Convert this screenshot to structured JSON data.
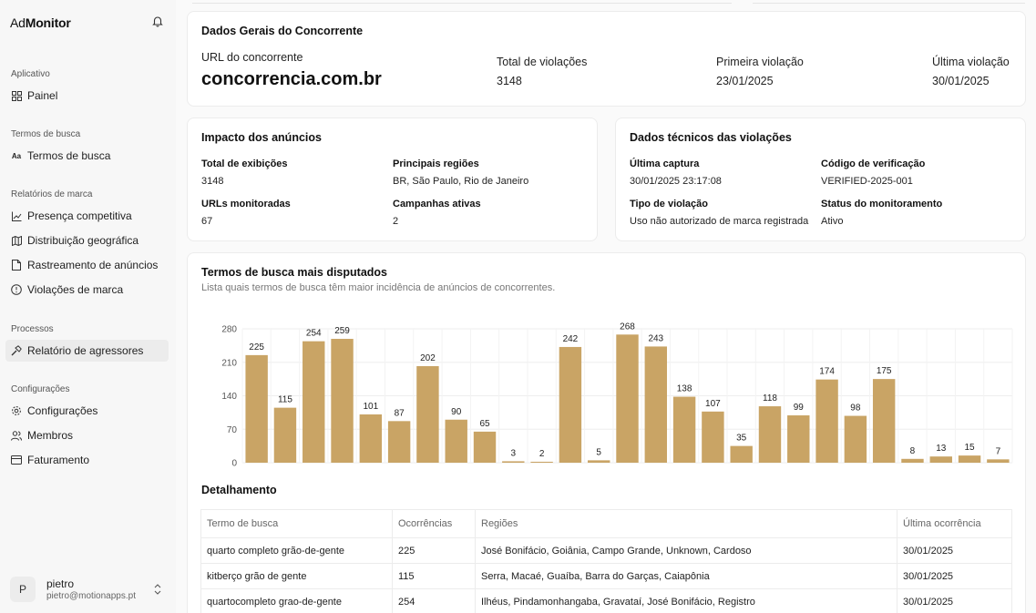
{
  "brand": {
    "ad": "Ad",
    "monitor": "Monitor"
  },
  "sidebar": {
    "sections": [
      {
        "title": "Aplicativo",
        "items": [
          {
            "label": "Painel",
            "icon": "grid-icon"
          }
        ]
      },
      {
        "title": "Termos de busca",
        "items": [
          {
            "label": "Termos de busca",
            "icon": "text-icon"
          }
        ]
      },
      {
        "title": "Relatórios de marca",
        "items": [
          {
            "label": "Presença competitiva",
            "icon": "chart-line-icon"
          },
          {
            "label": "Distribuição geográfica",
            "icon": "map-icon"
          },
          {
            "label": "Rastreamento de anúncios",
            "icon": "document-icon"
          },
          {
            "label": "Violações de marca",
            "icon": "alert-circle-icon"
          }
        ]
      },
      {
        "title": "Processos",
        "items": [
          {
            "label": "Relatório de agressores",
            "icon": "hammer-icon"
          }
        ]
      },
      {
        "title": "Configurações",
        "items": [
          {
            "label": "Configurações",
            "icon": "gear-icon"
          },
          {
            "label": "Membros",
            "icon": "users-icon"
          },
          {
            "label": "Faturamento",
            "icon": "credit-card-icon"
          }
        ]
      }
    ],
    "user": {
      "initial": "P",
      "name": "pietro",
      "email": "pietro@motionapps.pt"
    }
  },
  "general": {
    "title": "Dados Gerais do Concorrente",
    "url_label": "URL do concorrente",
    "url_value": "concorrencia.com.br",
    "total_label": "Total de violações",
    "total_value": "3148",
    "first_label": "Primeira violação",
    "first_value": "23/01/2025",
    "last_label": "Última violação",
    "last_value": "30/01/2025"
  },
  "impact": {
    "title": "Impacto dos anúncios",
    "exib_label": "Total de exibições",
    "exib_value": "3148",
    "regions_label": "Principais regiões",
    "regions_value": "BR, São Paulo, Rio de Janeiro",
    "urls_label": "URLs monitoradas",
    "urls_value": "67",
    "campaigns_label": "Campanhas ativas",
    "campaigns_value": "2"
  },
  "technical": {
    "title": "Dados técnicos das violações",
    "capture_label": "Última captura",
    "capture_value": "30/01/2025 23:17:08",
    "code_label": "Código de verificação",
    "code_value": "VERIFIED-2025-001",
    "type_label": "Tipo de violação",
    "type_value": "Uso não autorizado de marca registrada",
    "status_label": "Status do monitoramento",
    "status_value": "Ativo"
  },
  "terms": {
    "title": "Termos de busca mais disputados",
    "subtitle": "Lista quais termos de busca têm maior incidência de anúncios de concorrentes."
  },
  "chart_data": {
    "type": "bar",
    "title": "Termos de busca mais disputados",
    "values": [
      225,
      115,
      254,
      259,
      101,
      87,
      202,
      90,
      65,
      3,
      2,
      242,
      5,
      268,
      243,
      138,
      107,
      35,
      118,
      99,
      174,
      98,
      175,
      8,
      13,
      15,
      7
    ],
    "yticks": [
      0,
      70,
      140,
      210,
      280
    ],
    "ylim": [
      0,
      280
    ],
    "color": "#c9a465",
    "grid": true
  },
  "detail": {
    "title": "Detalhamento",
    "columns": [
      "Termo de busca",
      "Ocorrências",
      "Regiões",
      "Última ocorrência"
    ],
    "rows": [
      [
        "quarto completo grão-de-gente",
        "225",
        "José Bonifácio, Goiânia, Campo Grande, Unknown, Cardoso",
        "30/01/2025"
      ],
      [
        "kitberço grão de gente",
        "115",
        "Serra, Macaé, Guaíba, Barra do Garças, Caiapônia",
        "30/01/2025"
      ],
      [
        "quartocompleto grao-de-gente",
        "254",
        "Ilhéus, Pindamonhangaba, Gravataí, José Bonifácio, Registro",
        "30/01/2025"
      ]
    ]
  }
}
